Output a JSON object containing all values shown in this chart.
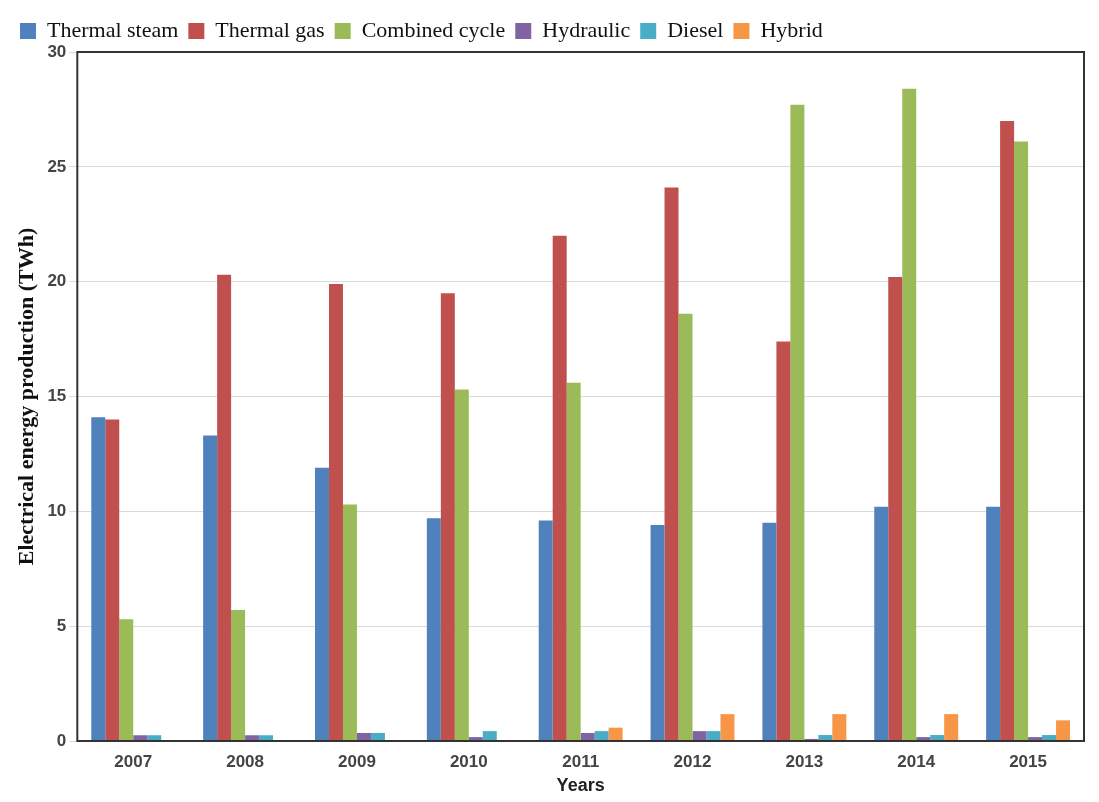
{
  "chart_data": {
    "type": "bar",
    "xlabel": "Years",
    "ylabel": "Electrical energy production (TWh)",
    "categories": [
      "2007",
      "2008",
      "2009",
      "2010",
      "2011",
      "2012",
      "2013",
      "2014",
      "2015"
    ],
    "series": [
      {
        "name": "Thermal steam",
        "color": "#4f81bd",
        "values": [
          14.1,
          13.3,
          11.9,
          9.7,
          9.6,
          9.4,
          9.5,
          10.2,
          10.2
        ]
      },
      {
        "name": "Thermal gas",
        "color": "#c0504d",
        "values": [
          14.0,
          20.3,
          19.9,
          19.5,
          22.0,
          24.1,
          17.4,
          20.2,
          27.0
        ]
      },
      {
        "name": "Combined cycle",
        "color": "#9bbb59",
        "values": [
          5.3,
          5.7,
          10.3,
          15.3,
          15.6,
          18.6,
          27.7,
          28.4,
          26.1
        ]
      },
      {
        "name": "Hydraulic",
        "color": "#8064a2",
        "values": [
          0.25,
          0.25,
          0.35,
          0.17,
          0.35,
          0.43,
          0.09,
          0.17,
          0.17
        ]
      },
      {
        "name": "Diesel",
        "color": "#4bacc6",
        "values": [
          0.25,
          0.25,
          0.35,
          0.43,
          0.43,
          0.43,
          0.26,
          0.26,
          0.26
        ]
      },
      {
        "name": "Hybrid",
        "color": "#f79646",
        "values": [
          null,
          null,
          null,
          null,
          0.58,
          1.17,
          1.17,
          1.17,
          0.9
        ]
      }
    ],
    "ylim": [
      0,
      30
    ],
    "yticks": [
      0,
      5,
      10,
      15,
      20,
      25,
      30
    ],
    "grid": "y",
    "legend": "top left"
  }
}
